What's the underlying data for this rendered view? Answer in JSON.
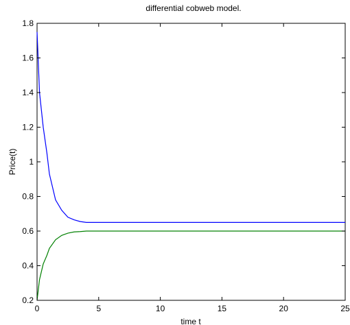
{
  "chart_data": {
    "type": "line",
    "title": "differential cobweb model.",
    "xlabel": "time t",
    "ylabel": "Price(t)",
    "xlim": [
      0,
      25
    ],
    "ylim": [
      0.2,
      1.8
    ],
    "x_ticks": [
      0,
      5,
      10,
      15,
      20,
      25
    ],
    "y_ticks": [
      0.2,
      0.4,
      0.6,
      0.8,
      1,
      1.2,
      1.4,
      1.6,
      1.8
    ],
    "grid": false,
    "legend": "none",
    "series": [
      {
        "color": "#0000ff",
        "x": [
          0,
          0.2,
          0.5,
          0.8,
          1.0,
          1.5,
          2.0,
          2.5,
          3.0,
          3.5,
          4.0,
          5.0,
          10,
          15,
          20,
          25
        ],
        "y": [
          1.75,
          1.4,
          1.2,
          1.05,
          0.93,
          0.78,
          0.72,
          0.68,
          0.665,
          0.655,
          0.65,
          0.65,
          0.65,
          0.65,
          0.65,
          0.65
        ]
      },
      {
        "color": "#008000",
        "x": [
          0,
          0.2,
          0.5,
          0.8,
          1.0,
          1.5,
          2.0,
          2.5,
          3.0,
          3.5,
          4.0,
          5.0,
          10,
          15,
          20,
          25
        ],
        "y": [
          0.2,
          0.32,
          0.41,
          0.46,
          0.5,
          0.55,
          0.575,
          0.588,
          0.595,
          0.597,
          0.6,
          0.6,
          0.6,
          0.6,
          0.6,
          0.6
        ]
      }
    ]
  }
}
